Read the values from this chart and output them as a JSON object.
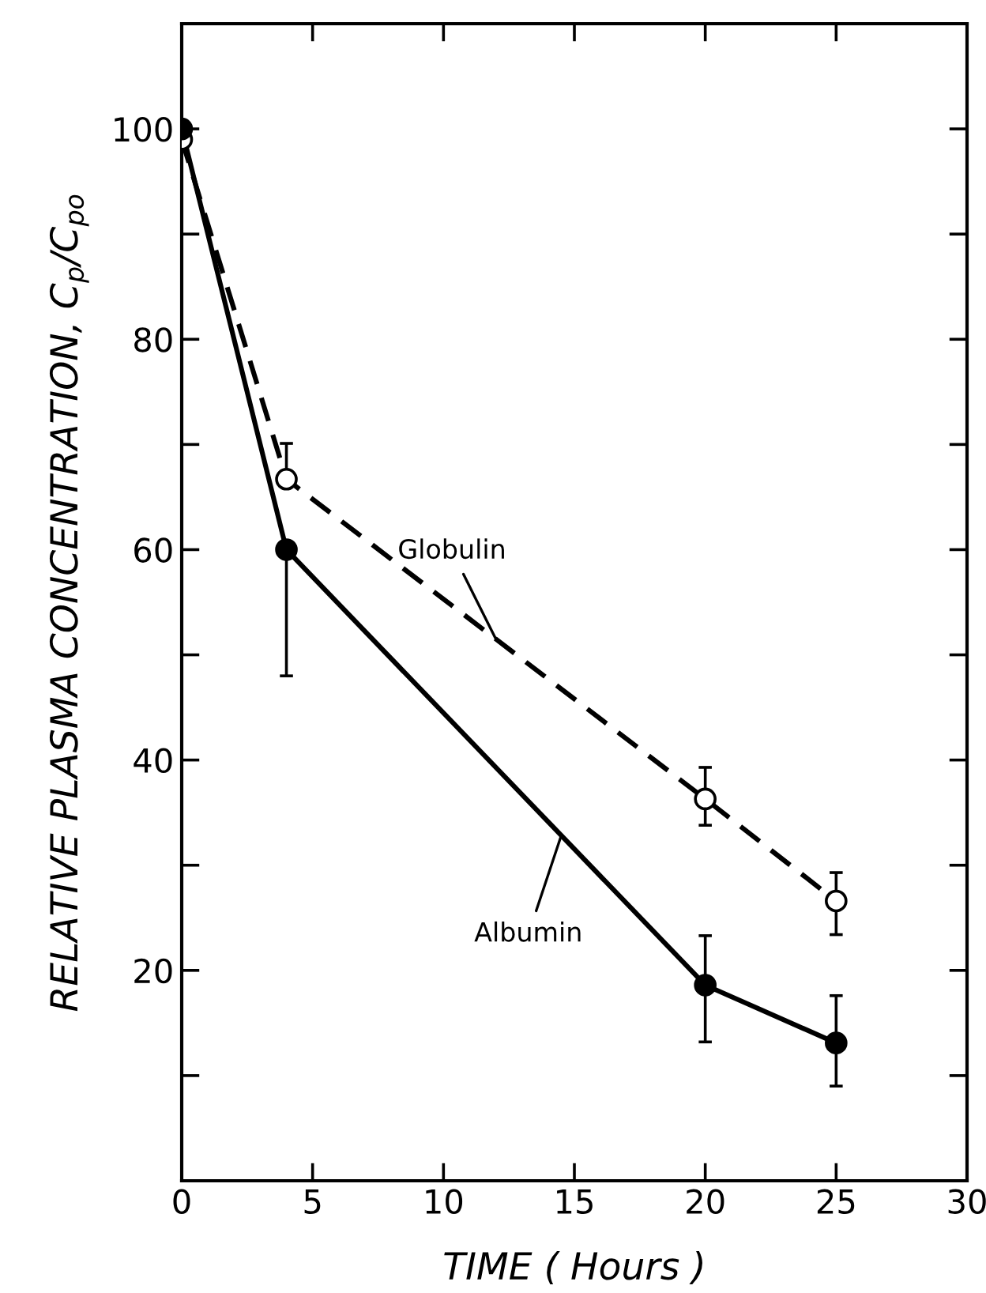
{
  "chart_data": {
    "type": "line",
    "xlabel": "TIME ( Hours )",
    "ylabel": "RELATIVE PLASMA CONCENTRATION, C$_{p}$/C$_{po}$",
    "xlim": [
      0,
      30
    ],
    "ylim": [
      0,
      110
    ],
    "xticks": [
      0,
      5,
      10,
      15,
      20,
      25,
      30
    ],
    "yticks": [
      {
        "value": 10,
        "label": null
      },
      20,
      {
        "value": 30,
        "label": null
      },
      40,
      {
        "value": 50,
        "label": null
      },
      60,
      {
        "value": 70,
        "label": null
      },
      80,
      {
        "value": 90,
        "label": null
      },
      100
    ],
    "grid": false,
    "legend": false,
    "marker": "circle",
    "series": [
      {
        "name": "Globulin",
        "color": "#000000",
        "line_style": "dashed",
        "x": [
          0,
          4,
          20,
          25
        ],
        "values": [
          99,
          66.7,
          36.3,
          26.6
        ],
        "errors": [
          null,
          [
            66.7,
            70.1
          ],
          [
            33.8,
            39.3
          ],
          [
            23.4,
            29.3
          ]
        ]
      },
      {
        "name": "Albumin",
        "color": "#000000",
        "line_style": "solid",
        "x": [
          0,
          4,
          20,
          25
        ],
        "values": [
          100,
          60,
          18.6,
          13.1
        ],
        "errors": [
          null,
          [
            48,
            60
          ],
          [
            13.2,
            23.3
          ],
          [
            9.0,
            17.6
          ]
        ]
      }
    ]
  }
}
